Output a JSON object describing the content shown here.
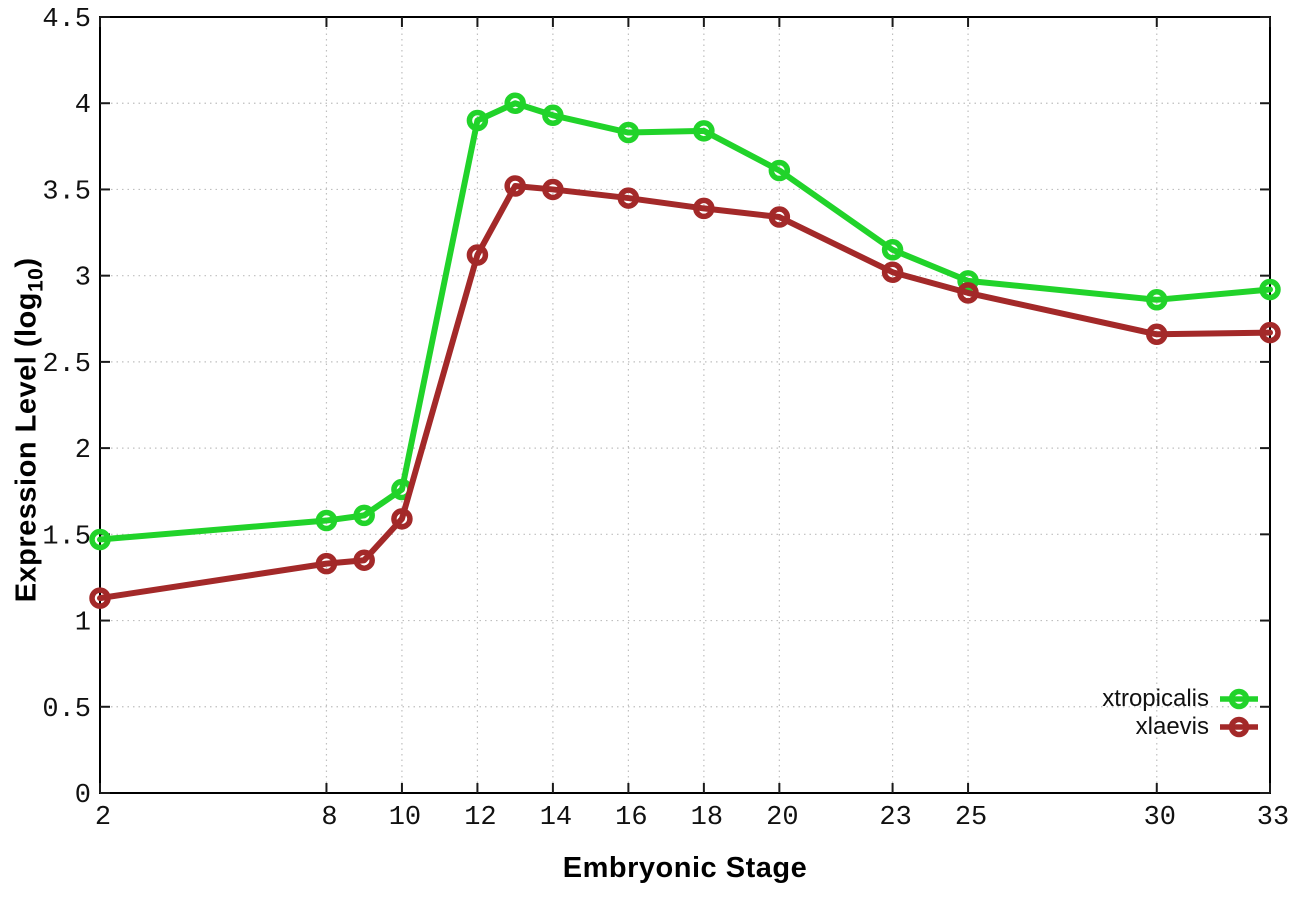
{
  "chart_data": {
    "type": "line",
    "title": "",
    "xlabel": "Embryonic Stage",
    "ylabel": "Expression Level (log10)",
    "ylabel_parts": {
      "prefix": "Expression Level (log",
      "subscript": "10",
      "suffix": ")"
    },
    "x": [
      2,
      8,
      9,
      10,
      12,
      13,
      14,
      16,
      18,
      20,
      23,
      25,
      30,
      33
    ],
    "series": [
      {
        "name": "xtropicalis",
        "color": "#21d32a",
        "marker": "open-circle",
        "values": [
          1.47,
          1.58,
          1.61,
          1.76,
          3.9,
          4.0,
          3.93,
          3.83,
          3.84,
          3.61,
          3.15,
          2.97,
          2.86,
          2.92
        ]
      },
      {
        "name": "xlaevis",
        "color": "#a32929",
        "marker": "open-circle",
        "values": [
          1.13,
          1.33,
          1.35,
          1.59,
          3.12,
          3.52,
          3.5,
          3.45,
          3.39,
          3.34,
          3.02,
          2.9,
          2.66,
          2.67
        ]
      }
    ],
    "xticks": [
      2,
      8,
      10,
      12,
      14,
      16,
      18,
      20,
      23,
      25,
      30,
      33
    ],
    "yticks": [
      0,
      0.5,
      1,
      1.5,
      2,
      2.5,
      3,
      3.5,
      4,
      4.5
    ],
    "xlim": [
      2,
      33
    ],
    "ylim": [
      0,
      4.5
    ],
    "grid": true,
    "legend_position": "bottom-right",
    "grid_color": "#bfbfbf",
    "axis_color": "#000000",
    "tick_color": "#1a1a1a",
    "text_color": "#111111"
  }
}
